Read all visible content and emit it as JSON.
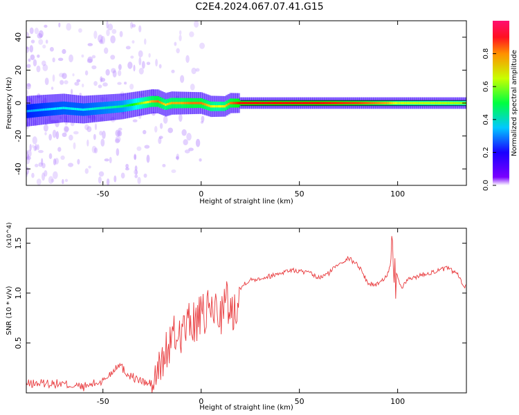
{
  "title": "C2E4.2024.067.07.41.G15",
  "chart_data": [
    {
      "type": "heatmap",
      "xlabel": "Height of straight line (km)",
      "ylabel": "Frequency (Hz)",
      "xlim": [
        -89,
        135
      ],
      "ylim": [
        -50,
        50
      ],
      "xticks": [
        -50,
        0,
        50,
        100
      ],
      "yticks": [
        -40,
        -20,
        0,
        20,
        40
      ],
      "colorbar": {
        "label": "Normalized spectral amplitude",
        "range": [
          0,
          1
        ],
        "ticks": [
          "0.0",
          "0.2",
          "0.4",
          "0.6",
          "0.8"
        ],
        "colormap": "hsv"
      },
      "ridge": {
        "x": [
          -89,
          -80,
          -70,
          -60,
          -50,
          -40,
          -35,
          -30,
          -25,
          -22,
          -20,
          -18,
          -15,
          -10,
          -5,
          0,
          5,
          8,
          12,
          15,
          20,
          40,
          60,
          80,
          95,
          100,
          135
        ],
        "y": [
          -5,
          -4,
          -3,
          -4,
          -3,
          -2,
          -1,
          0,
          1,
          1,
          0,
          -1,
          0,
          0,
          0,
          0,
          -2,
          -2,
          -2,
          0,
          0,
          0,
          0,
          0,
          0,
          0,
          0
        ],
        "peak_amplitude": [
          0.25,
          0.3,
          0.35,
          0.35,
          0.4,
          0.45,
          0.55,
          0.7,
          0.85,
          0.9,
          0.85,
          0.8,
          0.85,
          0.85,
          0.9,
          0.9,
          0.8,
          0.75,
          0.8,
          0.9,
          1.0,
          1.0,
          1.0,
          0.95,
          0.85,
          0.75,
          0.7
        ]
      }
    },
    {
      "type": "line",
      "xlabel": "Height of straight line (km)",
      "ylabel": "SNR (10 * v/v)",
      "multiplier": "(x10^4)",
      "xlim": [
        -89,
        135
      ],
      "ylim": [
        0,
        1.65
      ],
      "xticks": [
        -50,
        0,
        50,
        100
      ],
      "yticks": [
        "0.5",
        "1.0",
        "1.5"
      ],
      "color": "#e8383b",
      "series": [
        {
          "x": [
            -89,
            -80,
            -70,
            -60,
            -50,
            -45,
            -42,
            -38,
            -33,
            -28,
            -25,
            -22,
            -20,
            -17,
            -14,
            -10,
            -7,
            -4,
            0,
            3,
            6,
            10,
            13,
            16,
            19,
            22,
            25,
            30,
            35,
            40,
            45,
            50,
            55,
            60,
            65,
            70,
            75,
            80,
            85,
            88,
            92,
            95,
            97,
            98,
            99,
            102,
            105,
            110,
            115,
            120,
            125,
            130,
            133,
            135
          ],
          "y": [
            0.07,
            0.08,
            0.07,
            0.04,
            0.1,
            0.2,
            0.28,
            0.18,
            0.12,
            0.08,
            0.07,
            0.2,
            0.3,
            0.45,
            0.55,
            0.62,
            0.68,
            0.7,
            0.75,
            0.8,
            0.85,
            0.8,
            0.92,
            0.78,
            1.0,
            1.1,
            1.13,
            1.15,
            1.17,
            1.2,
            1.23,
            1.22,
            1.2,
            1.15,
            1.2,
            1.3,
            1.35,
            1.28,
            1.1,
            1.08,
            1.12,
            1.2,
            1.35,
            1.4,
            1.2,
            1.05,
            1.13,
            1.17,
            1.2,
            1.22,
            1.25,
            1.2,
            1.1,
            1.05
          ]
        }
      ]
    }
  ]
}
